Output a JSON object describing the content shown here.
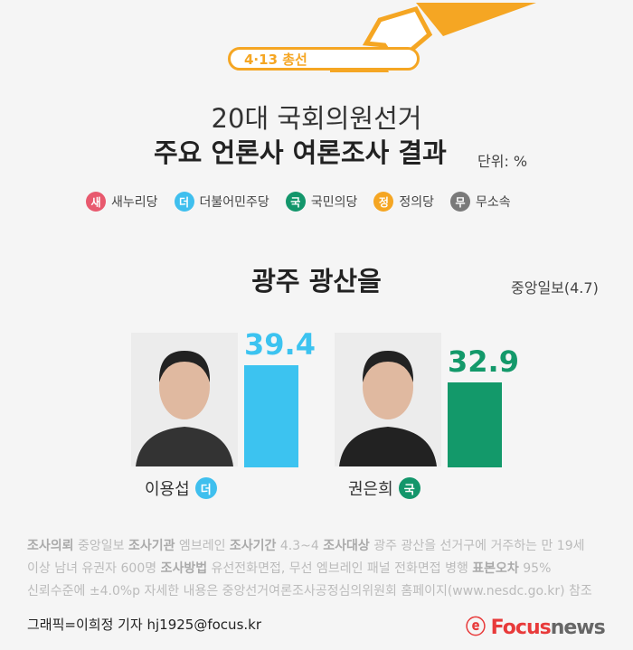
{
  "header": {
    "badge": "4·13 총선",
    "title_line1": "20대 국회의원선거",
    "title_line2": "주요 언론사 여론조사 결과",
    "unit": "단위: %"
  },
  "legend": [
    {
      "mark": "새",
      "label": "새누리당",
      "color": "#e8596e"
    },
    {
      "mark": "더",
      "label": "더불어민주당",
      "color": "#3fbfee"
    },
    {
      "mark": "국",
      "label": "국민의당",
      "color": "#13966b"
    },
    {
      "mark": "정",
      "label": "정의당",
      "color": "#f5a623"
    },
    {
      "mark": "무",
      "label": "무소속",
      "color": "#7a7a7a"
    }
  ],
  "poll": {
    "region": "광주 광산을",
    "source": "중앙일보(4.7)",
    "candidates": [
      {
        "name": "이용섭",
        "party_mark": "더",
        "value": "39.4",
        "color": "#3cc3f0"
      },
      {
        "name": "권은희",
        "party_mark": "국",
        "value": "32.9",
        "color": "#13996a"
      }
    ]
  },
  "notes": {
    "l1": [
      [
        "조사의뢰",
        " 중앙일보 "
      ],
      [
        "조사기관",
        " 엠브레인 "
      ],
      [
        "조사기간",
        " 4.3~4  "
      ],
      [
        "조사대상",
        " 광주 광산을 선거구에 거주하는 만 19세"
      ]
    ],
    "l2": [
      [
        "",
        "이상 남녀 유권자 600명 "
      ],
      [
        "조사방법",
        " 유선전화면접, 무선 엠브레인 패널 전화면접 병행  "
      ],
      [
        "표본오차",
        " 95%"
      ]
    ],
    "l3": "신뢰수준에 ±4.0%p  자세한 내용은 중앙선거여론조사공정심의위원회 홈페이지(www.nesdc.go.kr) 참조"
  },
  "footer": {
    "credit": "그래픽=이희정 기자 hj1925@focus.kr",
    "logo": "Focusnews"
  }
}
